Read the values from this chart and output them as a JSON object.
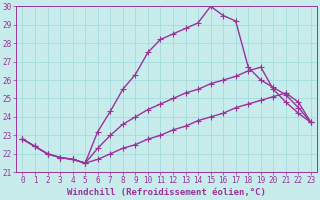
{
  "xlabel": "Windchill (Refroidissement éolien,°C)",
  "background_color": "#c8ecec",
  "line_color": "#993399",
  "xlim": [
    -0.5,
    23.5
  ],
  "ylim": [
    21,
    30
  ],
  "xticks": [
    0,
    1,
    2,
    3,
    4,
    5,
    6,
    7,
    8,
    9,
    10,
    11,
    12,
    13,
    14,
    15,
    16,
    17,
    18,
    19,
    20,
    21,
    22,
    23
  ],
  "yticks": [
    21,
    22,
    23,
    24,
    25,
    26,
    27,
    28,
    29,
    30
  ],
  "grid_color": "#aadddd",
  "line1_x": [
    0,
    1,
    2,
    3,
    4,
    5,
    6,
    7,
    8,
    9,
    10,
    11,
    12,
    13,
    14,
    15,
    16,
    17,
    18,
    19,
    20,
    21,
    22,
    23
  ],
  "line1_y": [
    22.8,
    22.4,
    22.0,
    21.8,
    21.7,
    21.5,
    21.7,
    22.0,
    22.3,
    22.5,
    22.8,
    23.0,
    23.3,
    23.5,
    23.8,
    24.0,
    24.2,
    24.5,
    24.7,
    24.9,
    25.1,
    25.3,
    24.8,
    23.7
  ],
  "line2_x": [
    0,
    1,
    2,
    3,
    4,
    5,
    6,
    7,
    8,
    9,
    10,
    11,
    12,
    13,
    14,
    15,
    16,
    17,
    18,
    19,
    20,
    21,
    22,
    23
  ],
  "line2_y": [
    22.8,
    22.4,
    22.0,
    21.8,
    21.7,
    21.5,
    23.2,
    24.3,
    25.5,
    26.3,
    27.5,
    28.2,
    28.5,
    28.8,
    29.1,
    30.0,
    29.5,
    29.2,
    26.7,
    26.0,
    25.6,
    25.2,
    24.5,
    23.7
  ],
  "line3_x": [
    0,
    1,
    2,
    3,
    4,
    5,
    6,
    7,
    8,
    9,
    10,
    11,
    12,
    13,
    14,
    15,
    16,
    17,
    18,
    19,
    20,
    21,
    22,
    23
  ],
  "line3_y": [
    22.8,
    22.4,
    22.0,
    21.8,
    21.7,
    21.5,
    22.3,
    23.0,
    23.6,
    24.0,
    24.4,
    24.7,
    25.0,
    25.3,
    25.5,
    25.8,
    26.0,
    26.2,
    26.5,
    26.7,
    25.5,
    24.8,
    24.2,
    23.7
  ],
  "marker": "+",
  "markersize": 4,
  "linewidth": 1.0,
  "tick_fontsize": 5.5,
  "label_fontsize": 6.5
}
